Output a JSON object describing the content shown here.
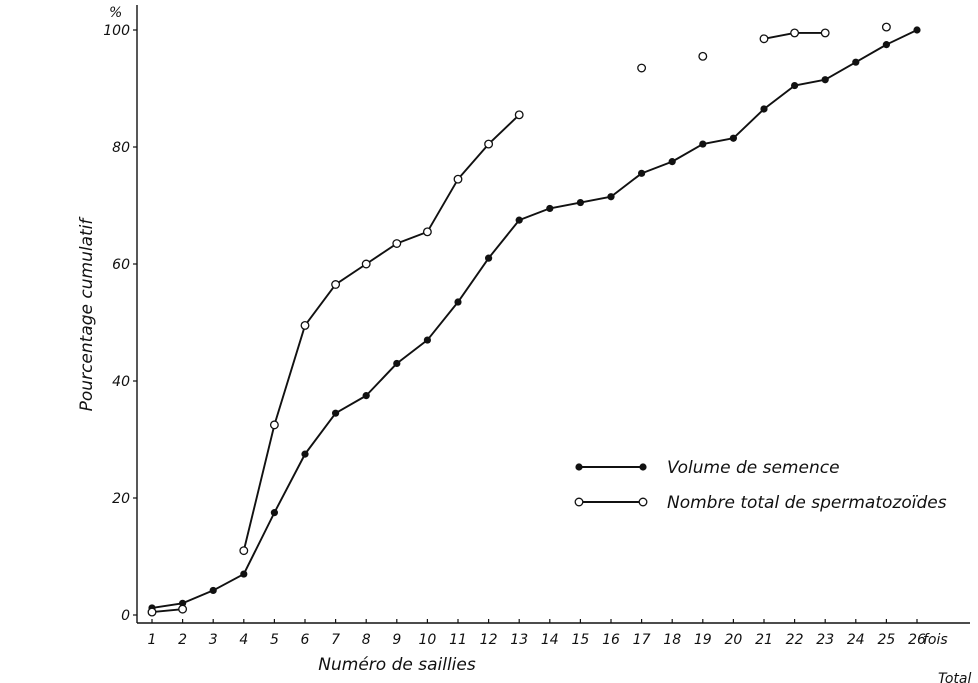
{
  "chart_data": {
    "type": "line",
    "ylabel": "Pourcentage cumulatif",
    "y_unit": "%",
    "xlabel": "Numéro de saillies",
    "x_unit": "fois",
    "corner_label": "Total",
    "ylim": [
      0,
      100
    ],
    "xlim": [
      1,
      26
    ],
    "y_ticks": [
      0,
      20,
      40,
      60,
      80,
      100
    ],
    "x_ticks": [
      1,
      2,
      3,
      4,
      5,
      6,
      7,
      8,
      9,
      10,
      11,
      12,
      13,
      14,
      15,
      16,
      17,
      18,
      19,
      20,
      21,
      22,
      23,
      24,
      25,
      26
    ],
    "grid": false,
    "legend_position": "center-right",
    "series": [
      {
        "name": "Volume de semence",
        "marker": "filled",
        "color": "#111111",
        "points": [
          [
            1,
            1.2
          ],
          [
            2,
            2
          ],
          [
            3,
            4.2
          ],
          [
            4,
            7
          ],
          [
            5,
            17.5
          ],
          [
            6,
            27.5
          ],
          [
            7,
            34.5
          ],
          [
            8,
            37.5
          ],
          [
            9,
            43
          ],
          [
            10,
            47
          ],
          [
            11,
            53.5
          ],
          [
            12,
            61
          ],
          [
            13,
            67.5
          ],
          [
            14,
            69.5
          ],
          [
            15,
            70.5
          ],
          [
            16,
            71.5
          ],
          [
            17,
            75.5
          ],
          [
            18,
            77.5
          ],
          [
            19,
            80.5
          ],
          [
            20,
            81.5
          ],
          [
            21,
            86.5
          ],
          [
            22,
            90.5
          ],
          [
            23,
            91.5
          ],
          [
            24,
            94.5
          ],
          [
            25,
            97.5
          ],
          [
            26,
            100
          ]
        ],
        "segments": [
          [
            1,
            26
          ]
        ]
      },
      {
        "name": "Nombre total de spermatozoïdes",
        "marker": "open",
        "color": "#111111",
        "points": [
          [
            1,
            0.5
          ],
          [
            2,
            1
          ],
          [
            4,
            11
          ],
          [
            5,
            32.5
          ],
          [
            6,
            49.5
          ],
          [
            7,
            56.5
          ],
          [
            8,
            60
          ],
          [
            9,
            63.5
          ],
          [
            10,
            65.5
          ],
          [
            11,
            74.5
          ],
          [
            12,
            80.5
          ],
          [
            13,
            85.5
          ],
          [
            17,
            93.5
          ],
          [
            19,
            95.5
          ],
          [
            21,
            98.5
          ],
          [
            22,
            99.5
          ],
          [
            23,
            99.5
          ],
          [
            25,
            100.5
          ]
        ],
        "segments": [
          [
            1,
            2
          ],
          [
            4,
            13
          ],
          [
            21,
            23
          ]
        ]
      }
    ]
  }
}
